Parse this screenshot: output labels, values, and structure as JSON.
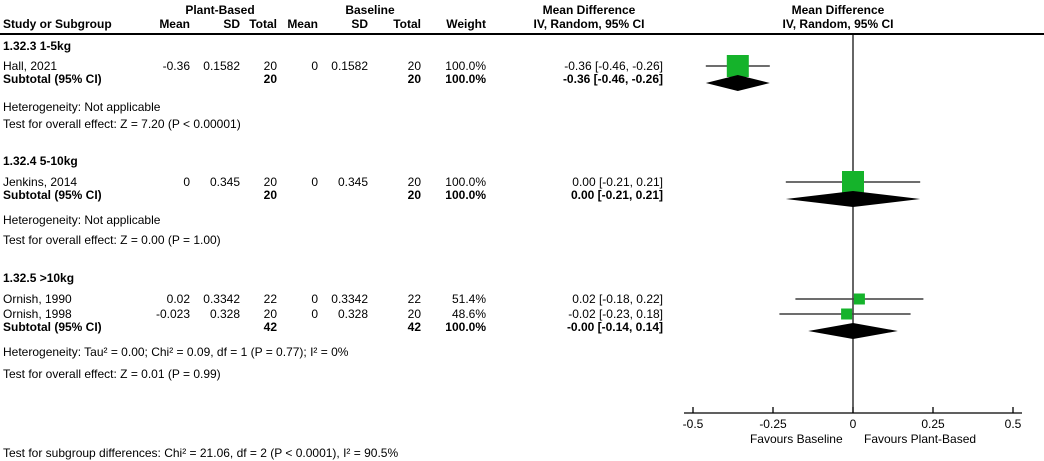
{
  "header": {
    "group1_label": "Plant-Based",
    "group2_label": "Baseline",
    "columns": {
      "study": "Study or Subgroup",
      "mean": "Mean",
      "sd": "SD",
      "total": "Total",
      "weight": "Weight"
    },
    "md_col_title": "Mean Difference",
    "md_col_subtitle": "IV, Random, 95% CI",
    "md_plot_title": "Mean Difference",
    "md_plot_subtitle": "IV, Random, 95% CI"
  },
  "chart_data": {
    "type": "forest",
    "effect_measure": "Mean Difference (IV, Random, 95% CI)",
    "xlim": [
      -0.5,
      0.5
    ],
    "tick_values": [
      -0.5,
      -0.25,
      0,
      0.25,
      0.5
    ],
    "ticks": [
      "-0.5",
      "-0.25",
      "0",
      "0.25",
      "0.5"
    ],
    "favours_left": "Favours Baseline",
    "favours_right": "Favours Plant-Based",
    "subgroups": [
      {
        "label": "1.32.3 1-5kg",
        "studies": [
          {
            "study": "Hall, 2021",
            "mean1": "-0.36",
            "sd1": "0.1582",
            "total1": "20",
            "mean2": "0",
            "sd2": "0.1582",
            "total2": "20",
            "weight": "100.0%",
            "weight_value": 100.0,
            "ci_label": "-0.36 [-0.46, -0.26]",
            "estimate": -0.36,
            "ci_low": -0.46,
            "ci_high": -0.26
          }
        ],
        "subtotal": {
          "label": "Subtotal (95% CI)",
          "total1": "20",
          "total2": "20",
          "weight": "100.0%",
          "ci_label": "-0.36 [-0.46, -0.26]",
          "estimate": -0.36,
          "ci_low": -0.46,
          "ci_high": -0.26
        },
        "heterogeneity": "Heterogeneity: Not applicable",
        "overall_effect": "Test for overall effect: Z = 7.20 (P < 0.00001)"
      },
      {
        "label": "1.32.4 5-10kg",
        "studies": [
          {
            "study": "Jenkins, 2014",
            "mean1": "0",
            "sd1": "0.345",
            "total1": "20",
            "mean2": "0",
            "sd2": "0.345",
            "total2": "20",
            "weight": "100.0%",
            "weight_value": 100.0,
            "ci_label": "0.00 [-0.21, 0.21]",
            "estimate": 0.0,
            "ci_low": -0.21,
            "ci_high": 0.21
          }
        ],
        "subtotal": {
          "label": "Subtotal (95% CI)",
          "total1": "20",
          "total2": "20",
          "weight": "100.0%",
          "ci_label": "0.00 [-0.21, 0.21]",
          "estimate": 0.0,
          "ci_low": -0.21,
          "ci_high": 0.21
        },
        "heterogeneity": "Heterogeneity: Not applicable",
        "overall_effect": "Test for overall effect: Z = 0.00 (P = 1.00)"
      },
      {
        "label": "1.32.5 >10kg",
        "studies": [
          {
            "study": "Ornish, 1990",
            "mean1": "0.02",
            "sd1": "0.3342",
            "total1": "22",
            "mean2": "0",
            "sd2": "0.3342",
            "total2": "22",
            "weight": "51.4%",
            "weight_value": 51.4,
            "ci_label": "0.02 [-0.18, 0.22]",
            "estimate": 0.02,
            "ci_low": -0.18,
            "ci_high": 0.22
          },
          {
            "study": "Ornish, 1998",
            "mean1": "-0.023",
            "sd1": "0.328",
            "total1": "20",
            "mean2": "0",
            "sd2": "0.328",
            "total2": "20",
            "weight": "48.6%",
            "weight_value": 48.6,
            "ci_label": "-0.02 [-0.23, 0.18]",
            "estimate": -0.02,
            "ci_low": -0.23,
            "ci_high": 0.18
          }
        ],
        "subtotal": {
          "label": "Subtotal (95% CI)",
          "total1": "42",
          "total2": "42",
          "weight": "100.0%",
          "ci_label": "-0.00 [-0.14, 0.14]",
          "estimate": 0.0,
          "ci_low": -0.14,
          "ci_high": 0.14
        },
        "heterogeneity": "Heterogeneity: Tau² = 0.00; Chi² = 0.09, df = 1 (P = 0.77); I² = 0%",
        "overall_effect": "Test for overall effect: Z = 0.01 (P = 0.99)"
      }
    ]
  },
  "footer": {
    "subgroup_test": "Test for subgroup differences: Chi² = 21.06, df = 2 (P < 0.0001), I² = 90.5%"
  },
  "colors": {
    "square": "#15b32b",
    "diamond": "#000000",
    "ci_line": "#3d3d3d",
    "axis": "#000000"
  }
}
